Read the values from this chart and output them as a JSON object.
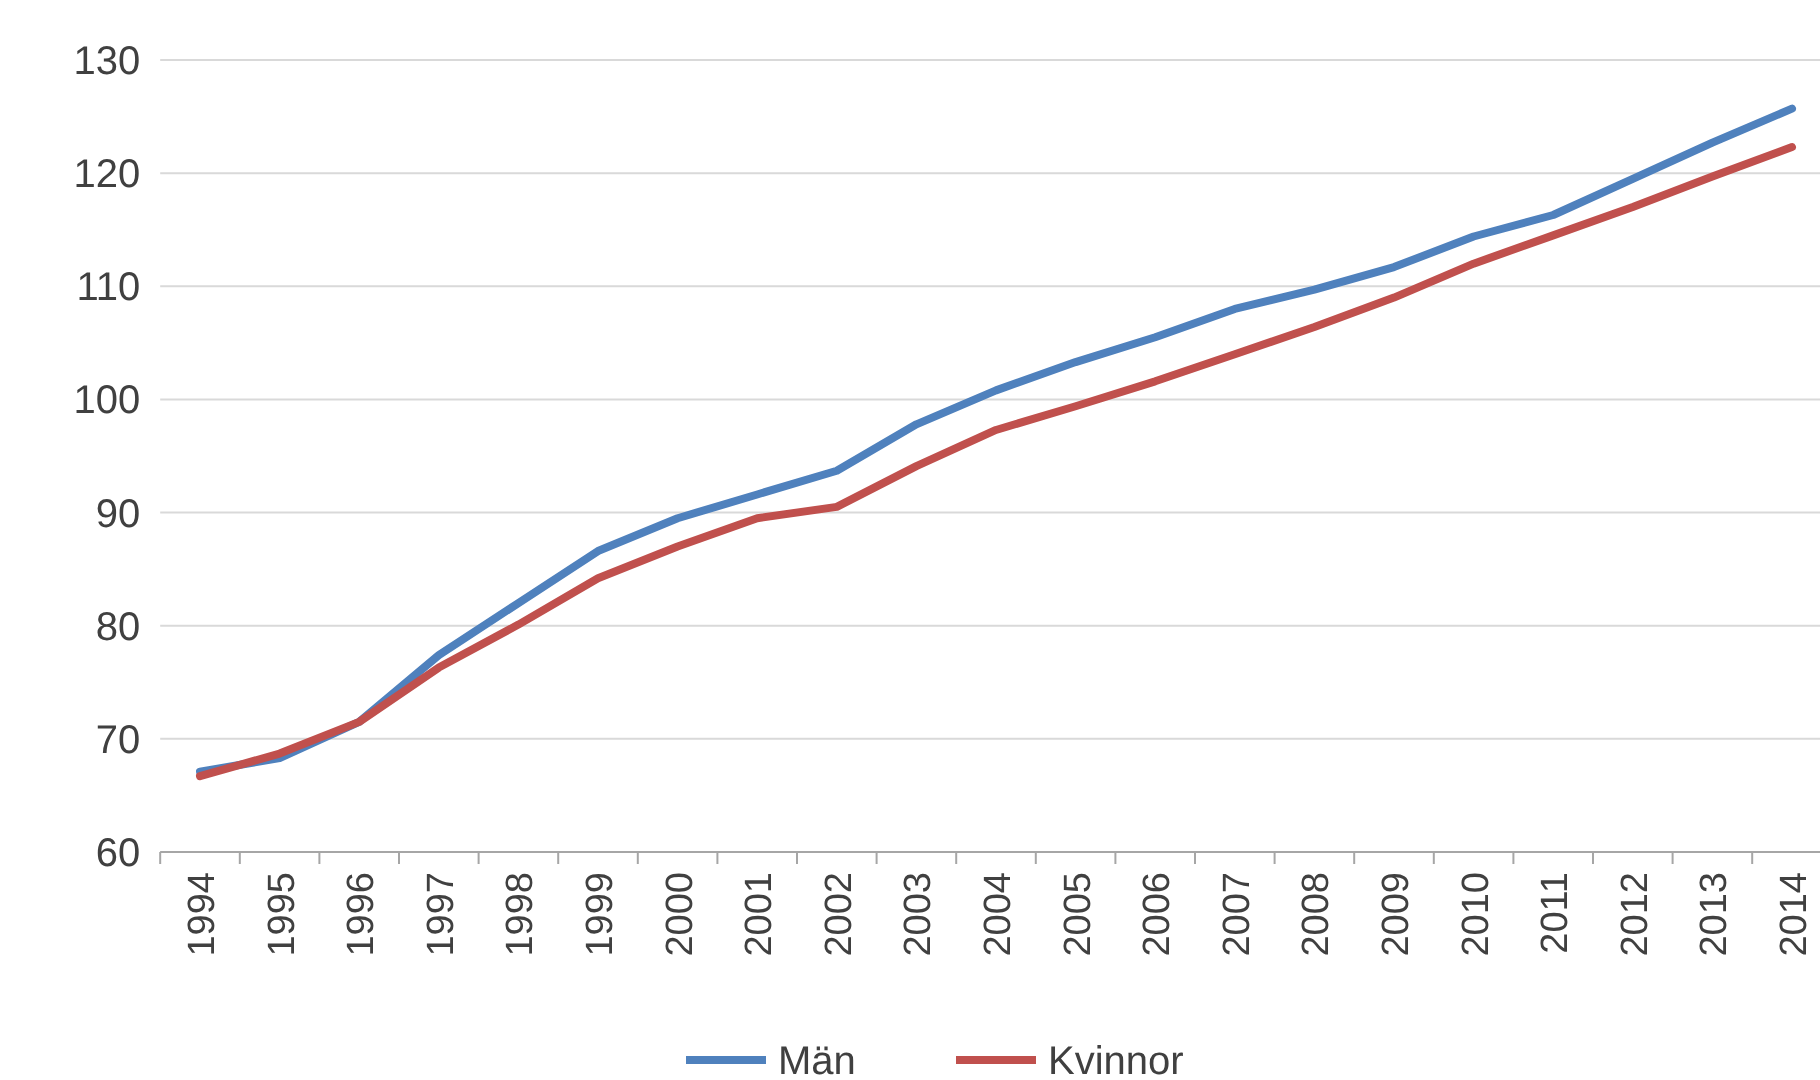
{
  "chart_data": {
    "type": "line",
    "categories": [
      "1994",
      "1995",
      "1996",
      "1997",
      "1998",
      "1999",
      "2000",
      "2001",
      "2002",
      "2003",
      "2004",
      "2005",
      "2006",
      "2007",
      "2008",
      "2009",
      "2010",
      "2011",
      "2012",
      "2013",
      "2014"
    ],
    "series": [
      {
        "name": "Män",
        "color": "#4f81bd",
        "values": [
          67.1,
          68.3,
          71.5,
          77.4,
          82.0,
          86.6,
          89.5,
          91.6,
          93.7,
          97.8,
          100.8,
          103.3,
          105.5,
          108.0,
          109.7,
          111.7,
          114.4,
          116.3,
          119.5,
          122.7,
          125.7
        ]
      },
      {
        "name": "Kvinnor",
        "color": "#c0504d",
        "values": [
          66.7,
          68.7,
          71.5,
          76.3,
          80.1,
          84.2,
          87.0,
          89.5,
          90.5,
          94.1,
          97.3,
          99.4,
          101.6,
          104.0,
          106.4,
          109.0,
          112.0,
          114.5,
          117.0,
          119.7,
          122.3
        ]
      }
    ],
    "ylim": [
      60,
      130
    ],
    "yticks": [
      60,
      70,
      80,
      90,
      100,
      110,
      120,
      130
    ],
    "grid": "y",
    "legend": "bottom",
    "marker": "none",
    "line_style": "solid"
  }
}
